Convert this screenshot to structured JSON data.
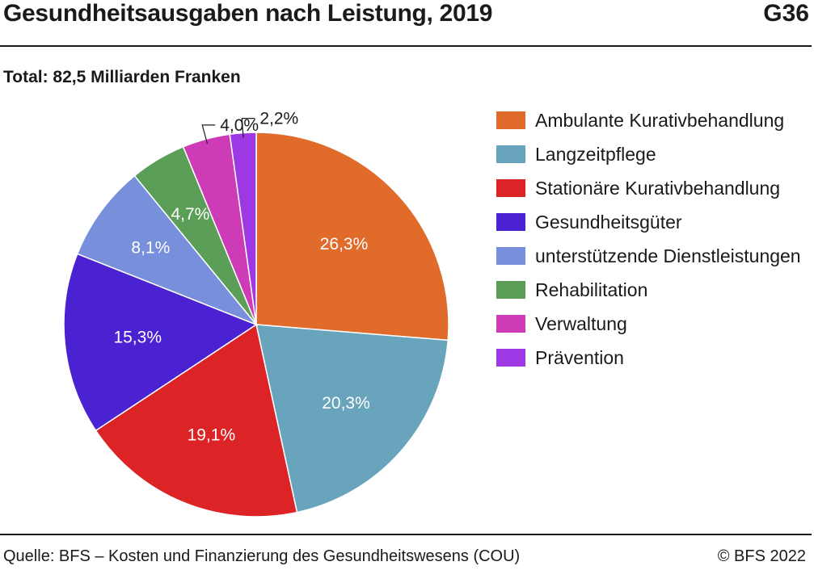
{
  "header": {
    "title": "Gesundheitsausgaben nach Leistung, 2019",
    "code": "G36"
  },
  "footer": {
    "source": "Quelle:  BFS – Kosten und Finanzierung des Gesundheitswesens (COU)",
    "copyright": "©  BFS 2022"
  },
  "chart_data": {
    "type": "pie",
    "subtitle": "Total: 82,5 Milliarden Franken",
    "legend_position": "right",
    "slices": [
      {
        "name": "Ambulante Kurativbehandlung",
        "value": 26.3,
        "label": "26,3%",
        "color": "#e06b2b"
      },
      {
        "name": "Langzeitpflege",
        "value": 20.3,
        "label": "20,3%",
        "color": "#68a4bb"
      },
      {
        "name": "Stationäre Kurativbehandlung",
        "value": 19.1,
        "label": "19,1%",
        "color": "#dc2426"
      },
      {
        "name": "Gesundheitsgüter",
        "value": 15.3,
        "label": "15,3%",
        "color": "#4b22d1"
      },
      {
        "name": "unterstützende Dienstleistungen",
        "value": 8.1,
        "label": "8,1%",
        "color": "#7890dc"
      },
      {
        "name": "Rehabilitation",
        "value": 4.7,
        "label": "4,7%",
        "color": "#5b9e57"
      },
      {
        "name": "Verwaltung",
        "value": 4.0,
        "label": "4,0%",
        "color": "#cd3cb6"
      },
      {
        "name": "Prävention",
        "value": 2.2,
        "label": "2,2%",
        "color": "#9e38e4"
      }
    ]
  }
}
